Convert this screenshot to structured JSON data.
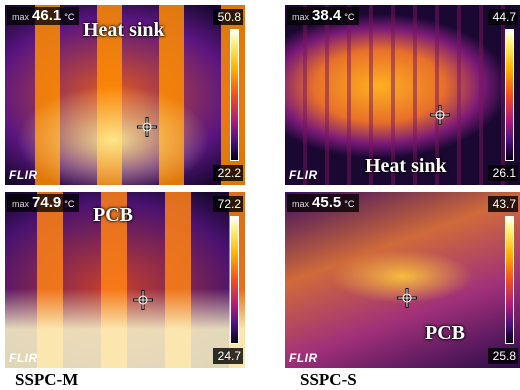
{
  "panels": [
    {
      "max_label": "max",
      "max_value": "46.1",
      "unit": "°C",
      "scale_top": "50.8",
      "scale_bottom": "22.2",
      "brand": "FLIR",
      "annotation": "Heat sink"
    },
    {
      "max_label": "max",
      "max_value": "38.4",
      "unit": "°C",
      "scale_top": "44.7",
      "scale_bottom": "26.1",
      "brand": "FLIR",
      "annotation": "Heat sink"
    },
    {
      "max_label": "max",
      "max_value": "74.9",
      "unit": "°C",
      "scale_top": "72.2",
      "scale_bottom": "24.7",
      "brand": "FLIR",
      "annotation": "PCB"
    },
    {
      "max_label": "max",
      "max_value": "45.5",
      "unit": "°C",
      "scale_top": "43.7",
      "scale_bottom": "25.8",
      "brand": "FLIR",
      "annotation": "PCB"
    }
  ],
  "captions": [
    "SSPC-M",
    "SSPC-S"
  ]
}
